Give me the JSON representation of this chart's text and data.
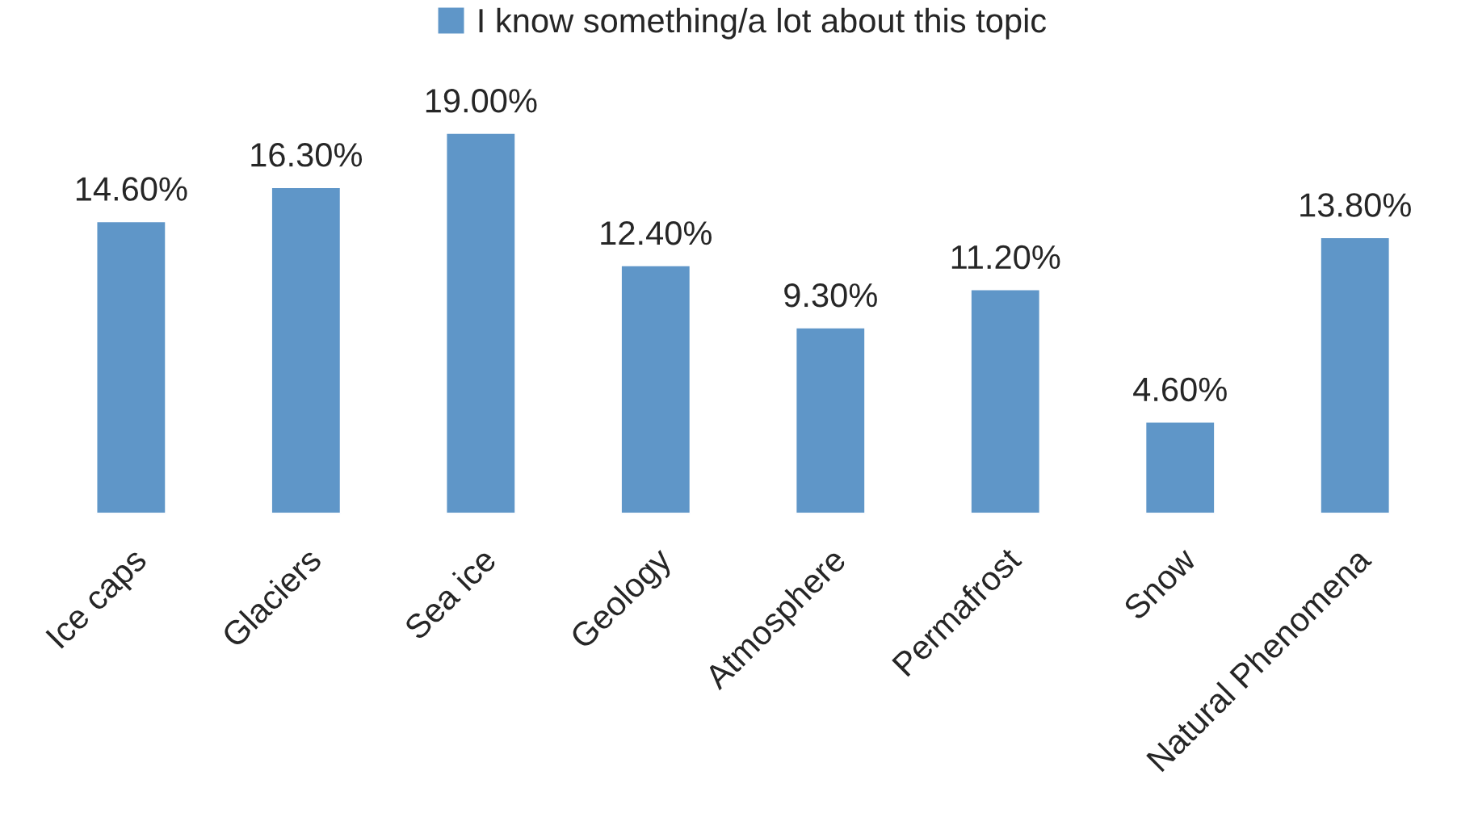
{
  "chart_data": {
    "type": "bar",
    "categories": [
      "Ice caps",
      "Glaciers",
      "Sea ice",
      "Geology",
      "Atmosphere",
      "Permafrost",
      "Snow",
      "Natural Phenomena"
    ],
    "series": [
      {
        "name": "I know something/a lot about this topic",
        "color": "#5f96c8",
        "values": [
          14.6,
          16.3,
          19.0,
          12.4,
          9.3,
          11.2,
          4.6,
          13.8
        ],
        "value_labels": [
          "14.60%",
          "16.30%",
          "19.00%",
          "12.40%",
          "9.30%",
          "11.20%",
          "4.60%",
          "13.80%"
        ]
      }
    ],
    "legend": "top"
  }
}
